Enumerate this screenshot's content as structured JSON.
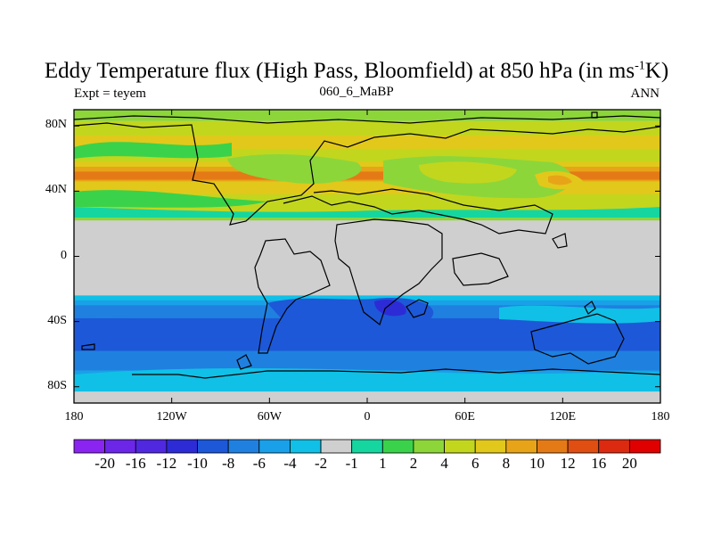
{
  "title": {
    "main": "Eddy Temperature flux (High Pass, Bloomfield) at 850 hPa (in ms",
    "sup": "-1",
    "end": "K)"
  },
  "experiment_label": "Expt = teyem",
  "center_label": "060_6_MaBP",
  "season_label": "ANN",
  "chart_data": {
    "type": "heatmap",
    "variable": "Eddy Temperature flux (High Pass, Bloomfield) at 850 hPa",
    "units": "ms-1K",
    "x_range": [
      -180,
      180
    ],
    "y_range": [
      -90,
      90
    ],
    "x_ticks": [
      {
        "value": -180,
        "label": "180"
      },
      {
        "value": -120,
        "label": "120W"
      },
      {
        "value": -60,
        "label": "60W"
      },
      {
        "value": 0,
        "label": "0"
      },
      {
        "value": 60,
        "label": "60E"
      },
      {
        "value": 120,
        "label": "120E"
      },
      {
        "value": 180,
        "label": "180"
      }
    ],
    "y_ticks": [
      {
        "value": 80,
        "label": "80N"
      },
      {
        "value": 40,
        "label": "40N"
      },
      {
        "value": 0,
        "label": "0"
      },
      {
        "value": -40,
        "label": "40S"
      },
      {
        "value": -80,
        "label": "80S"
      }
    ],
    "colorbar": {
      "labels": [
        "-20",
        "-16",
        "-12",
        "-10",
        "-8",
        "-6",
        "-4",
        "-2",
        "-1",
        "1",
        "2",
        "4",
        "6",
        "8",
        "10",
        "12",
        "16",
        "20"
      ],
      "colors": [
        "#8a24f0",
        "#6c26e8",
        "#4f28e0",
        "#2d2bd6",
        "#1d58d8",
        "#1f80e0",
        "#1aa0e8",
        "#10c0e6",
        "#cfcfcf",
        "#16d6a0",
        "#3ad24a",
        "#8cd63a",
        "#c2d61e",
        "#e2c81a",
        "#e8a418",
        "#e47a16",
        "#e04e12",
        "#dc2a10",
        "#e00000"
      ]
    },
    "zonal_bands": [
      {
        "lat_from": 90,
        "lat_to": 83,
        "level": "2"
      },
      {
        "lat_from": 83,
        "lat_to": 25,
        "level": "4"
      },
      {
        "lat_from": 74,
        "lat_to": 66,
        "level": "6"
      },
      {
        "lat_from": 58,
        "lat_to": 38,
        "level": "6"
      },
      {
        "lat_from": 55,
        "lat_to": 46,
        "level": "8"
      },
      {
        "lat_from": 52,
        "lat_to": 47,
        "level": "10"
      },
      {
        "lat_from": 27,
        "lat_to": 22,
        "level": "2"
      },
      {
        "lat_from": 22,
        "lat_to": -24,
        "level": "-1"
      },
      {
        "lat_from": -24,
        "lat_to": -83,
        "level": "-2"
      },
      {
        "lat_from": -27,
        "lat_to": -75,
        "level": "-4"
      },
      {
        "lat_from": -30,
        "lat_to": -70,
        "level": "-6"
      },
      {
        "lat_from": -38,
        "lat_to": -58,
        "level": "-8"
      },
      {
        "lat_from": -83,
        "lat_to": -90,
        "level": "-1"
      }
    ]
  }
}
